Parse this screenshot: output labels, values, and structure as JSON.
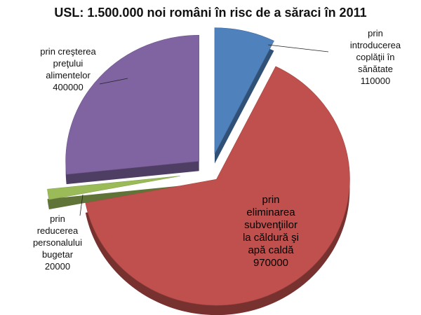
{
  "chart_data": {
    "type": "pie",
    "title": "USL: 1.500.000 noi români în risc de a săraci în 2011",
    "slices": [
      {
        "label": [
          "prin",
          "introducerea",
          "coplăţii în",
          "sănătate",
          "110000"
        ],
        "value": 110000,
        "color": "#4f81bd"
      },
      {
        "label": [
          "prin",
          "eliminarea",
          "subvenţiilor",
          "la căldură şi",
          "apă caldă",
          "970000"
        ],
        "value": 970000,
        "color": "#c0504d"
      },
      {
        "label": [
          "prin",
          "reducerea",
          "personalului",
          "bugetar",
          "20000"
        ],
        "value": 20000,
        "color": "#9bbb59"
      },
      {
        "label": [
          "prin creşterea",
          "preţului",
          "alimentelor",
          "400000"
        ],
        "value": 400000,
        "color": "#8064a2"
      }
    ],
    "exploded": true,
    "legend": "none"
  }
}
